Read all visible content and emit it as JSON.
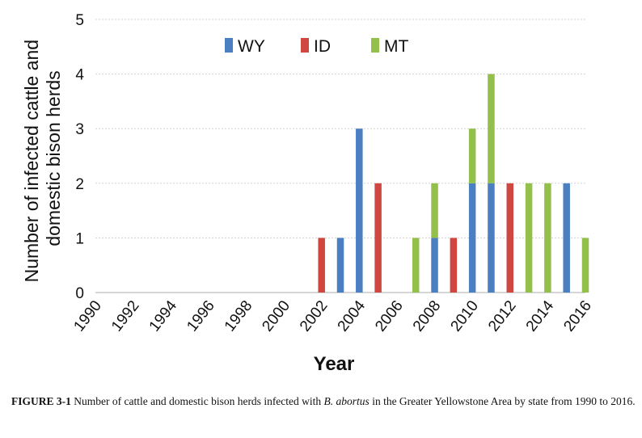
{
  "chart_data": {
    "type": "bar",
    "stacked": true,
    "xlabel": "Year",
    "ylabel_lines": [
      "Number of infected cattle and",
      "domestic bison herds"
    ],
    "ylim": [
      0,
      5
    ],
    "yticks": [
      0,
      1,
      2,
      3,
      4,
      5
    ],
    "xticks": [
      "1990",
      "1992",
      "1994",
      "1996",
      "1998",
      "2000",
      "2002",
      "2004",
      "2006",
      "2008",
      "2010",
      "2012",
      "2014",
      "2016"
    ],
    "grid": "horizontal",
    "legend_position": "top",
    "categories": [
      1990,
      1991,
      1992,
      1993,
      1994,
      1995,
      1996,
      1997,
      1998,
      1999,
      2000,
      2001,
      2002,
      2003,
      2004,
      2005,
      2006,
      2007,
      2008,
      2009,
      2010,
      2011,
      2012,
      2013,
      2014,
      2015,
      2016
    ],
    "series": [
      {
        "name": "WY",
        "color": "#4a7fc1",
        "values": [
          0,
          0,
          0,
          0,
          0,
          0,
          0,
          0,
          0,
          0,
          0,
          0,
          0,
          1,
          3,
          0,
          0,
          0,
          1,
          0,
          2,
          2,
          0,
          0,
          0,
          2,
          0
        ]
      },
      {
        "name": "ID",
        "color": "#d0473f",
        "values": [
          0,
          0,
          0,
          0,
          0,
          0,
          0,
          0,
          0,
          0,
          0,
          0,
          1,
          0,
          0,
          2,
          0,
          0,
          0,
          1,
          0,
          0,
          2,
          0,
          0,
          0,
          0
        ]
      },
      {
        "name": "MT",
        "color": "#93bf4b",
        "values": [
          0,
          0,
          0,
          0,
          0,
          0,
          0,
          0,
          0,
          0,
          0,
          0,
          0,
          0,
          0,
          0,
          0,
          1,
          1,
          0,
          1,
          2,
          0,
          2,
          2,
          0,
          1
        ]
      }
    ]
  },
  "caption": {
    "label": "FIGURE 3-1",
    "text_before": " Number of cattle and domestic bison herds infected with ",
    "species": "B. abortus",
    "text_after": " in the Greater Yellowstone Area by state from 1990 to 2016."
  }
}
